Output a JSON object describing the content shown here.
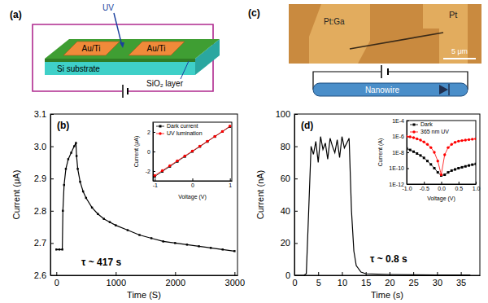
{
  "figure_panels": {
    "a": {
      "label": "(a)",
      "light": "UV",
      "electrodes": [
        "Au/Ti",
        "Au/Ti"
      ],
      "substrate": "Si substrate",
      "layer": "SiO₂ layer"
    },
    "c": {
      "label": "(c)",
      "contacts": [
        "Pt:Ga",
        "Pt"
      ],
      "scale_bar": "5 μm",
      "device": "Nanowire"
    }
  },
  "chart_data": [
    {
      "type": "line",
      "panel_label": "(b)",
      "x_label": "Time (S)",
      "y_label": "Current (μA)",
      "annotations": [
        "τ ~ 417 s"
      ],
      "x": [
        0,
        50,
        100,
        110,
        130,
        160,
        200,
        250,
        300,
        330,
        340,
        360,
        400,
        450,
        500,
        600,
        700,
        800,
        900,
        1000,
        1200,
        1400,
        1600,
        1800,
        2000,
        2200,
        2400,
        2600,
        2800,
        3000
      ],
      "series": [
        {
          "color": "#000000",
          "marker": "square",
          "values": [
            2.68,
            2.68,
            2.68,
            2.8,
            2.88,
            2.93,
            2.96,
            2.98,
            3.0,
            3.01,
            2.97,
            2.93,
            2.89,
            2.86,
            2.84,
            2.81,
            2.79,
            2.775,
            2.765,
            2.755,
            2.74,
            2.725,
            2.715,
            2.705,
            2.7,
            2.695,
            2.69,
            2.685,
            2.68,
            2.675
          ]
        }
      ],
      "xlim": [
        -100,
        3050
      ],
      "xticks": [
        0,
        1000,
        2000,
        3000
      ],
      "ylim": [
        2.6,
        3.1
      ],
      "yticks": [
        2.6,
        2.7,
        2.8,
        2.9,
        {
          "value": 3,
          "label": "3.0"
        },
        3.1
      ]
    },
    {
      "type": "line",
      "x_label": "Voltage (V)",
      "y_label": "Current (μA)",
      "legend": "upper left",
      "x": [
        -1,
        -0.8,
        -0.6,
        -0.4,
        -0.2,
        0,
        0.2,
        0.4,
        0.6,
        0.8,
        1
      ],
      "series": [
        {
          "name": "Dark current",
          "color": "#000000",
          "marker": "square",
          "values": [
            -2.55,
            -2.04,
            -1.53,
            -1.02,
            -0.51,
            0,
            0.51,
            1.02,
            1.53,
            2.04,
            2.55
          ]
        },
        {
          "name": "UV lumination",
          "color": "#ff0000",
          "marker": "circle",
          "values": [
            -2.45,
            -1.95,
            -1.45,
            -0.95,
            -0.45,
            0.05,
            0.55,
            1.05,
            1.55,
            2.05,
            2.6
          ]
        }
      ],
      "xlim": [
        -1.05,
        1.05
      ],
      "xticks": [
        -1,
        0,
        1
      ],
      "ylim": [
        -3,
        3
      ],
      "yticks": [
        -2,
        0,
        2
      ]
    },
    {
      "type": "line",
      "panel_label": "(d)",
      "x_label": "Time (s)",
      "y_label": "Current (nA)",
      "annotations": [
        "τ ~ 0.8 s"
      ],
      "x": [
        0,
        1,
        2,
        2.5,
        3,
        3.5,
        4,
        4.5,
        5,
        5.5,
        6,
        6.5,
        7,
        7.5,
        8,
        8.5,
        9,
        9.5,
        10,
        10.5,
        11,
        11.5,
        12,
        12.5,
        13,
        14,
        15,
        20,
        25,
        30,
        35,
        37
      ],
      "series": [
        {
          "color": "#000000",
          "values": [
            0,
            0,
            0,
            1,
            40,
            80,
            75,
            83,
            70,
            86,
            78,
            82,
            72,
            85,
            80,
            76,
            84,
            73,
            86,
            79,
            82,
            85,
            40,
            15,
            6,
            2,
            1,
            0.5,
            0.3,
            0.2,
            0.2,
            0.2
          ]
        }
      ],
      "xlim": [
        0,
        39
      ],
      "xticks": [
        0,
        5,
        10,
        15,
        20,
        25,
        30,
        35
      ],
      "ylim": [
        0,
        100
      ],
      "yticks": [
        0,
        20,
        40,
        60,
        80,
        100
      ]
    },
    {
      "type": "line",
      "x_label": "Voltage (V)",
      "y_label": "Current (A)",
      "legend": "upper left",
      "log": "y",
      "x": [
        -1,
        -0.9,
        -0.8,
        -0.7,
        -0.6,
        -0.5,
        -0.4,
        -0.3,
        -0.2,
        -0.1,
        0,
        0.1,
        0.2,
        0.3,
        0.4,
        0.5,
        0.6,
        0.7,
        0.8,
        0.9,
        1
      ],
      "series": [
        {
          "name": "Dark",
          "color": "#000000",
          "marker": "square",
          "values": [
            3e-08,
            2e-08,
            1.2e-08,
            7e-09,
            4e-09,
            2e-09,
            8e-10,
            3e-10,
            1e-10,
            3e-11,
            1.2e-11,
            1.5e-11,
            3e-11,
            5e-11,
            7e-11,
            1e-10,
            1.3e-10,
            1.7e-10,
            2.2e-10,
            2.8e-10,
            3.5e-10
          ]
        },
        {
          "name": "365 nm UV",
          "color": "#ff0000",
          "marker": "circle",
          "values": [
            1e-06,
            9e-07,
            7e-07,
            5e-07,
            3.5e-07,
            2e-07,
            1e-07,
            4e-08,
            1e-08,
            8e-10,
            1.5e-11,
            5e-09,
            4e-08,
            1e-07,
            1.8e-07,
            2.5e-07,
            3e-07,
            3.5e-07,
            4e-07,
            4.5e-07,
            5e-07
          ]
        }
      ],
      "xlim": [
        -1,
        1
      ],
      "xticks": [
        {
          "value": -1,
          "label": "-1.0"
        },
        -0.5,
        {
          "value": 0,
          "label": "0.0"
        },
        0.5,
        {
          "value": 1,
          "label": "1.0"
        }
      ],
      "ylim": [
        1e-12,
        0.0001
      ],
      "yticks": [
        {
          "value": 1e-12,
          "label": "1E-12"
        },
        {
          "value": 1e-10,
          "label": "1E-10"
        },
        {
          "value": 1e-08,
          "label": "1E-8"
        },
        {
          "value": 1e-06,
          "label": "1E-6"
        },
        {
          "value": 0.0001,
          "label": "1E-4"
        }
      ]
    }
  ]
}
